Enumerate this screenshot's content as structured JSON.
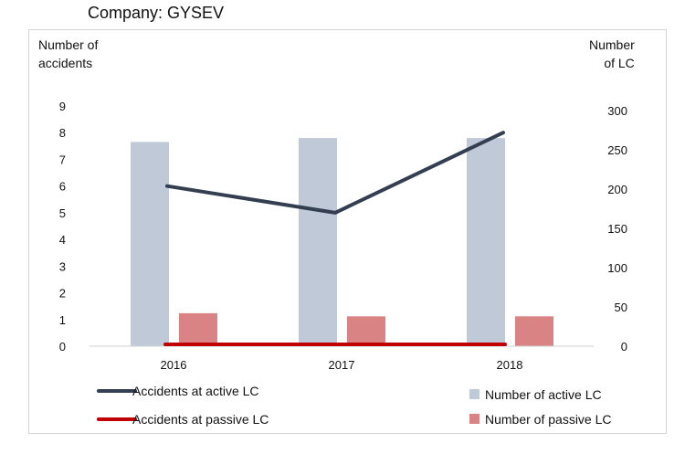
{
  "title": "Company: GYSEV",
  "chart_data": {
    "type": "bar",
    "categories": [
      "2016",
      "2017",
      "2018"
    ],
    "y_left": {
      "label_lines": [
        "Number of",
        "accidents"
      ],
      "ticks": [
        "0",
        "1",
        "2",
        "3",
        "4",
        "5",
        "6",
        "7",
        "8",
        "9"
      ],
      "range": [
        0,
        9
      ]
    },
    "y_right": {
      "label_lines": [
        "Number",
        "of LC"
      ],
      "ticks": [
        "0",
        "50",
        "100",
        "150",
        "200",
        "250",
        "300"
      ],
      "range": [
        0,
        300
      ]
    },
    "bar_series": [
      {
        "name": "Number of active LC",
        "axis": "right",
        "color": "#bfc9d7",
        "values": [
          260,
          265,
          265
        ]
      },
      {
        "name": "Number of passive LC",
        "axis": "right",
        "color": "#d98384",
        "values": [
          42,
          38,
          38
        ]
      }
    ],
    "line_series": [
      {
        "name": "Accidents at active LC",
        "axis": "left",
        "color": "#333f50",
        "values": [
          6,
          5,
          8
        ]
      },
      {
        "name": "Accidents at passive LC",
        "axis": "left",
        "color": "#c00000",
        "values": [
          0,
          0,
          0
        ]
      }
    ],
    "grid": false,
    "legend_position": "bottom"
  }
}
